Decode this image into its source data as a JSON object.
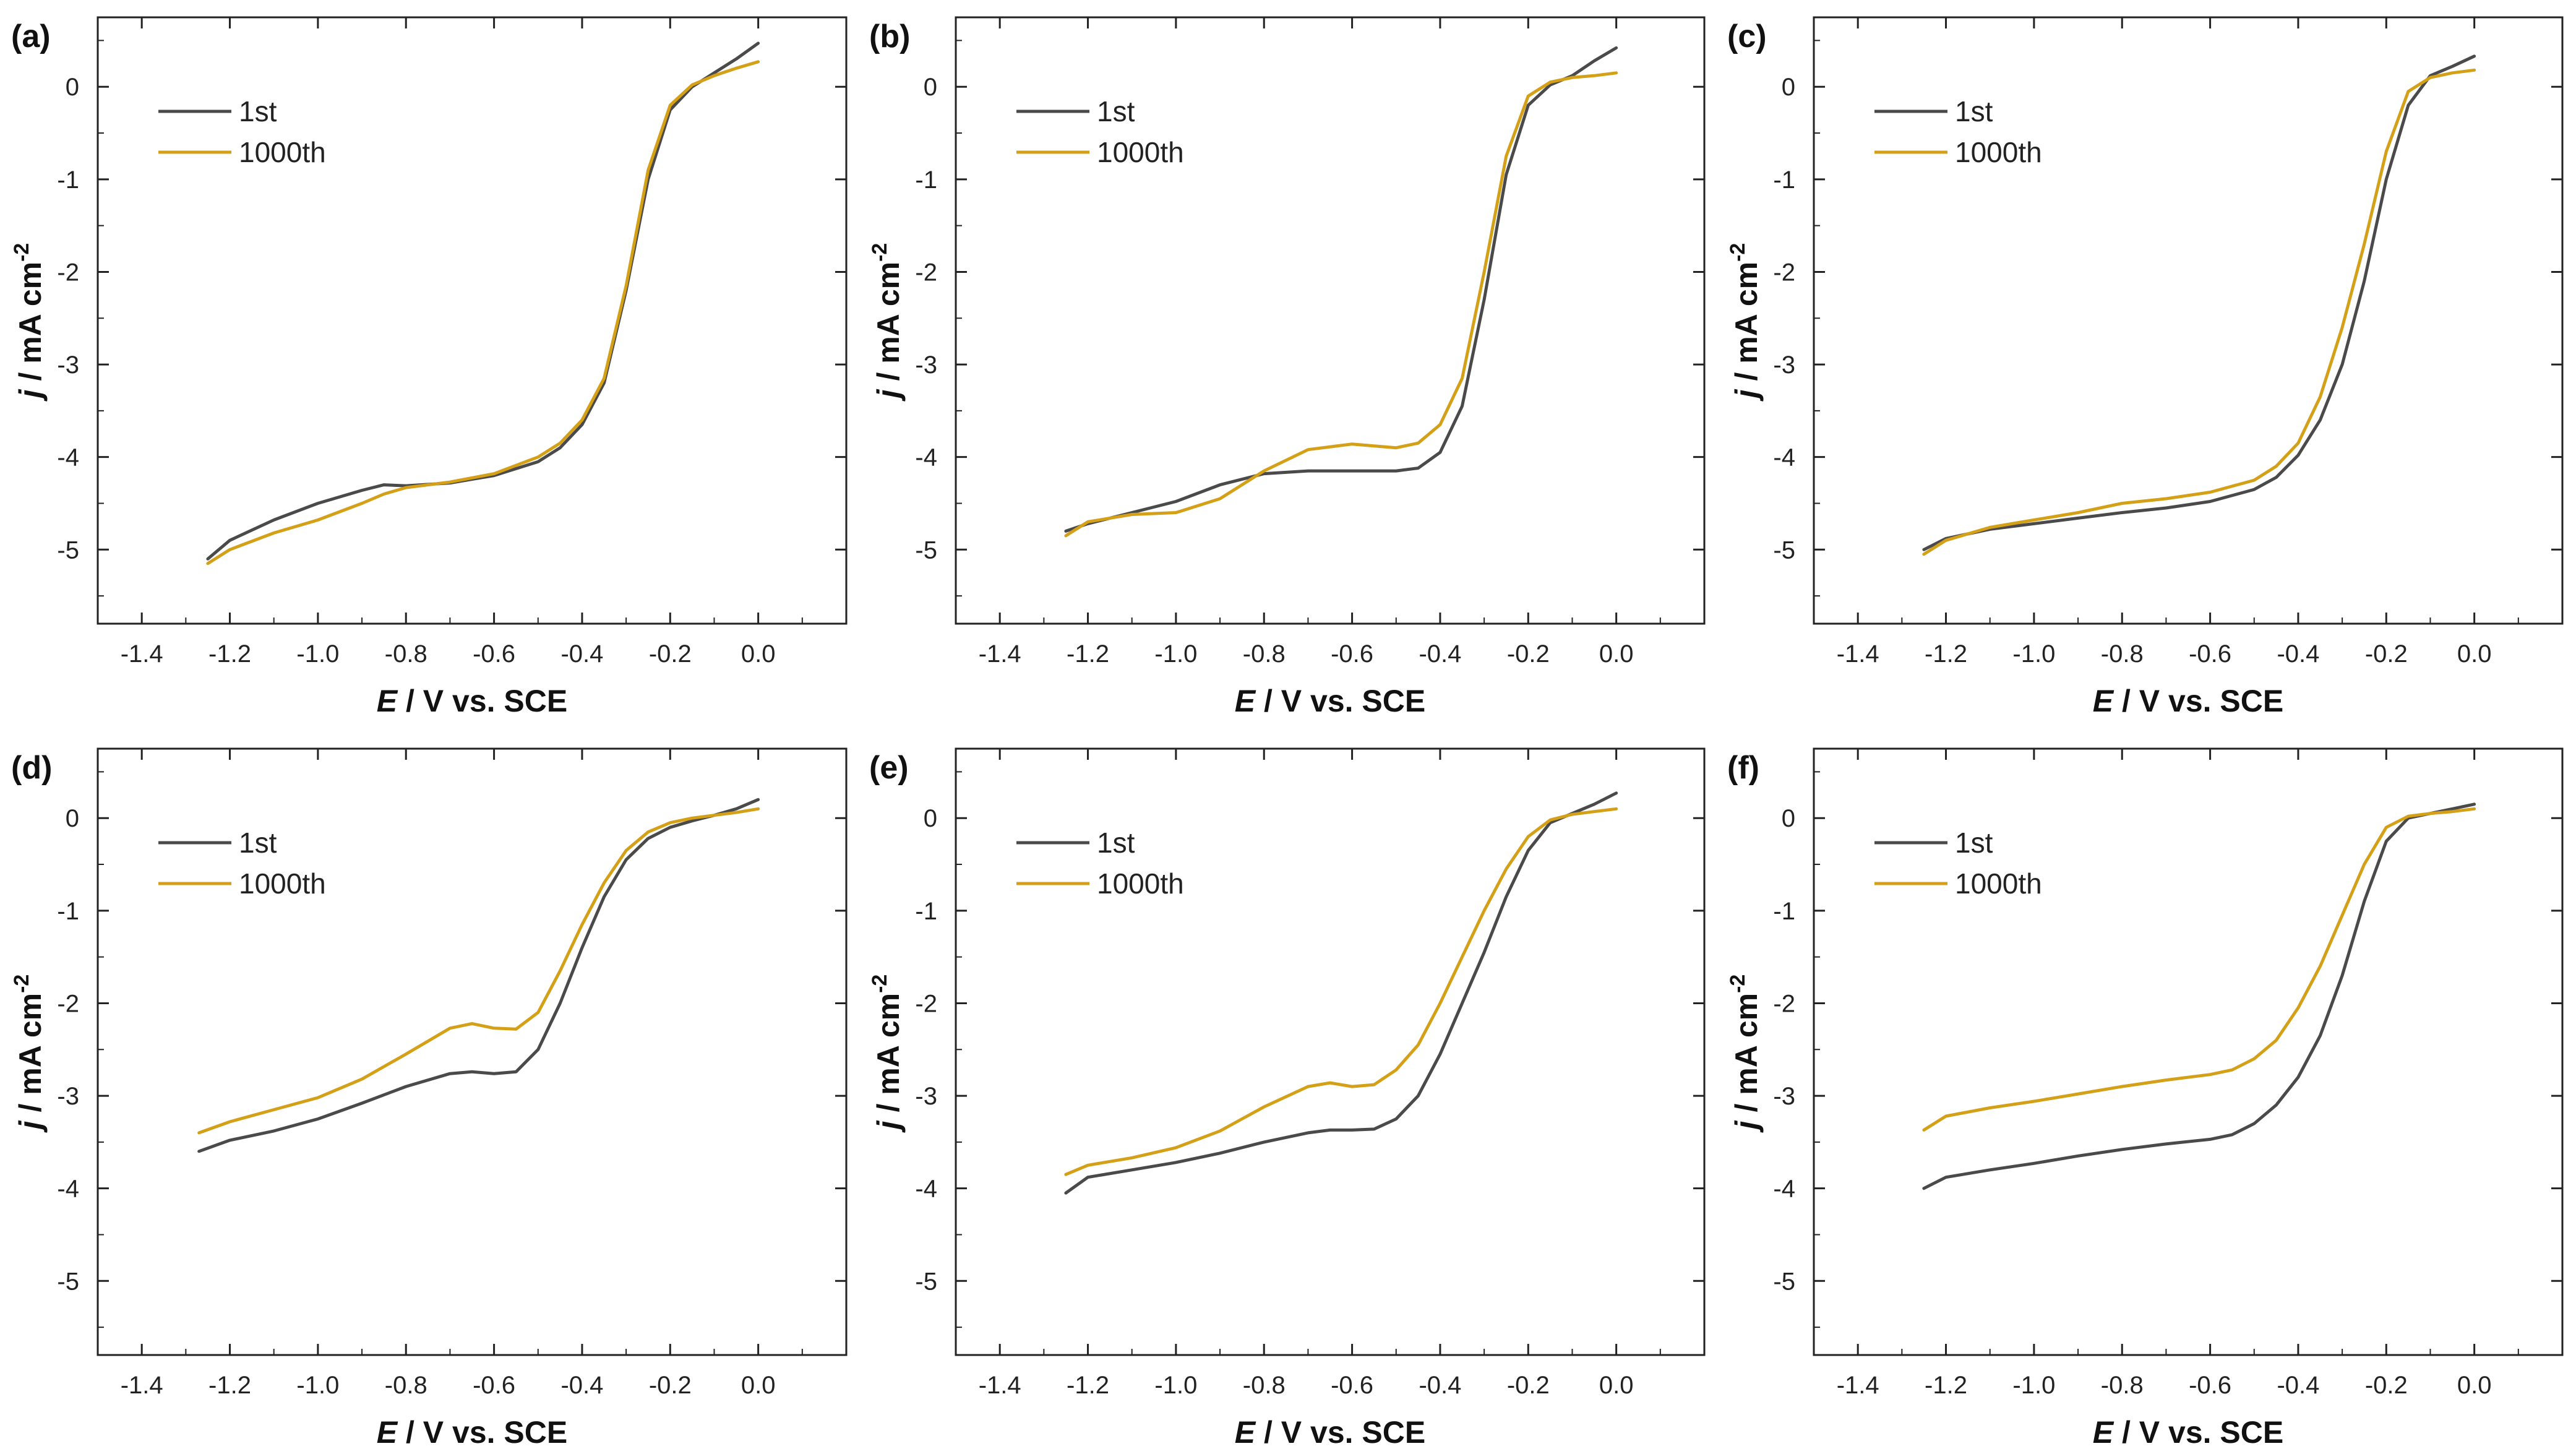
{
  "figure": {
    "colors": {
      "first": "#4a4a4a",
      "thousandth": "#d4a017",
      "axis": "#222222"
    }
  },
  "chart_data": [
    {
      "panel_label": "(a)",
      "type": "line",
      "xlabel_italic": "E",
      "xlabel_rest": " / V vs. SCE",
      "ylabel_italic": "j",
      "ylabel_rest": " / mA cm",
      "ylabel_sup": "-2",
      "xlim": [
        -1.5,
        0.2
      ],
      "ylim": [
        -5.8,
        0.75
      ],
      "xticks": [
        -1.4,
        -1.2,
        -1.0,
        -0.8,
        -0.6,
        -0.4,
        -0.2,
        0.0
      ],
      "xtick_labels": [
        "-1.4",
        "-1.2",
        "-1.0",
        "-0.8",
        "-0.6",
        "-0.4",
        "-0.2",
        "0.0"
      ],
      "yticks": [
        0,
        -1,
        -2,
        -3,
        -4,
        -5
      ],
      "ytick_labels": [
        "0",
        "-1",
        "-2",
        "-3",
        "-4",
        "-5"
      ],
      "legend": [
        "1st",
        "1000th"
      ],
      "series": [
        {
          "name": "1st",
          "x": [
            -1.25,
            -1.2,
            -1.1,
            -1.0,
            -0.9,
            -0.85,
            -0.8,
            -0.7,
            -0.6,
            -0.5,
            -0.45,
            -0.4,
            -0.35,
            -0.3,
            -0.25,
            -0.2,
            -0.15,
            -0.1,
            -0.05,
            0.0
          ],
          "y": [
            -5.1,
            -4.9,
            -4.68,
            -4.5,
            -4.36,
            -4.3,
            -4.31,
            -4.28,
            -4.2,
            -4.05,
            -3.9,
            -3.65,
            -3.2,
            -2.2,
            -1.0,
            -0.25,
            0.0,
            0.15,
            0.3,
            0.47
          ]
        },
        {
          "name": "1000th",
          "x": [
            -1.25,
            -1.2,
            -1.1,
            -1.0,
            -0.9,
            -0.85,
            -0.8,
            -0.7,
            -0.6,
            -0.5,
            -0.45,
            -0.4,
            -0.35,
            -0.3,
            -0.25,
            -0.2,
            -0.15,
            -0.1,
            -0.05,
            0.0
          ],
          "y": [
            -5.15,
            -5.0,
            -4.82,
            -4.68,
            -4.5,
            -4.4,
            -4.33,
            -4.27,
            -4.18,
            -4.0,
            -3.85,
            -3.6,
            -3.15,
            -2.15,
            -0.9,
            -0.2,
            0.02,
            0.12,
            0.2,
            0.27
          ]
        }
      ]
    },
    {
      "panel_label": "(b)",
      "type": "line",
      "xlabel_italic": "E",
      "xlabel_rest": " / V vs. SCE",
      "ylabel_italic": "j",
      "ylabel_rest": " / mA cm",
      "ylabel_sup": "-2",
      "xlim": [
        -1.5,
        0.2
      ],
      "ylim": [
        -5.8,
        0.75
      ],
      "xticks": [
        -1.4,
        -1.2,
        -1.0,
        -0.8,
        -0.6,
        -0.4,
        -0.2,
        0.0
      ],
      "xtick_labels": [
        "-1.4",
        "-1.2",
        "-1.0",
        "-0.8",
        "-0.6",
        "-0.4",
        "-0.2",
        "0.0"
      ],
      "yticks": [
        0,
        -1,
        -2,
        -3,
        -4,
        -5
      ],
      "ytick_labels": [
        "0",
        "-1",
        "-2",
        "-3",
        "-4",
        "-5"
      ],
      "legend": [
        "1st",
        "1000th"
      ],
      "series": [
        {
          "name": "1st",
          "x": [
            -1.25,
            -1.2,
            -1.1,
            -1.0,
            -0.9,
            -0.8,
            -0.7,
            -0.6,
            -0.5,
            -0.45,
            -0.4,
            -0.35,
            -0.3,
            -0.25,
            -0.2,
            -0.15,
            -0.1,
            -0.05,
            0.0
          ],
          "y": [
            -4.8,
            -4.72,
            -4.6,
            -4.48,
            -4.3,
            -4.18,
            -4.15,
            -4.15,
            -4.15,
            -4.12,
            -3.95,
            -3.45,
            -2.3,
            -0.95,
            -0.2,
            0.02,
            0.12,
            0.28,
            0.42
          ]
        },
        {
          "name": "1000th",
          "x": [
            -1.25,
            -1.2,
            -1.1,
            -1.0,
            -0.9,
            -0.8,
            -0.7,
            -0.6,
            -0.5,
            -0.45,
            -0.4,
            -0.35,
            -0.3,
            -0.25,
            -0.2,
            -0.15,
            -0.1,
            -0.05,
            0.0
          ],
          "y": [
            -4.85,
            -4.7,
            -4.62,
            -4.6,
            -4.45,
            -4.15,
            -3.92,
            -3.86,
            -3.9,
            -3.85,
            -3.65,
            -3.15,
            -2.0,
            -0.75,
            -0.1,
            0.05,
            0.1,
            0.12,
            0.15
          ]
        }
      ]
    },
    {
      "panel_label": "(c)",
      "type": "line",
      "xlabel_italic": "E",
      "xlabel_rest": " / V vs. SCE",
      "ylabel_italic": "j",
      "ylabel_rest": " / mA cm",
      "ylabel_sup": "-2",
      "xlim": [
        -1.5,
        0.2
      ],
      "ylim": [
        -5.8,
        0.75
      ],
      "xticks": [
        -1.4,
        -1.2,
        -1.0,
        -0.8,
        -0.6,
        -0.4,
        -0.2,
        0.0
      ],
      "xtick_labels": [
        "-1.4",
        "-1.2",
        "-1.0",
        "-0.8",
        "-0.6",
        "-0.4",
        "-0.2",
        "0.0"
      ],
      "yticks": [
        0,
        -1,
        -2,
        -3,
        -4,
        -5
      ],
      "ytick_labels": [
        "0",
        "-1",
        "-2",
        "-3",
        "-4",
        "-5"
      ],
      "legend": [
        "1st",
        "1000th"
      ],
      "series": [
        {
          "name": "1st",
          "x": [
            -1.25,
            -1.2,
            -1.1,
            -1.0,
            -0.9,
            -0.8,
            -0.7,
            -0.6,
            -0.5,
            -0.45,
            -0.4,
            -0.35,
            -0.3,
            -0.25,
            -0.2,
            -0.15,
            -0.1,
            -0.05,
            0.0
          ],
          "y": [
            -5.0,
            -4.88,
            -4.78,
            -4.72,
            -4.66,
            -4.6,
            -4.55,
            -4.48,
            -4.35,
            -4.22,
            -3.98,
            -3.6,
            -3.0,
            -2.1,
            -1.0,
            -0.2,
            0.12,
            0.22,
            0.33
          ]
        },
        {
          "name": "1000th",
          "x": [
            -1.25,
            -1.2,
            -1.1,
            -1.0,
            -0.9,
            -0.8,
            -0.7,
            -0.6,
            -0.5,
            -0.45,
            -0.4,
            -0.35,
            -0.3,
            -0.25,
            -0.2,
            -0.15,
            -0.1,
            -0.05,
            0.0
          ],
          "y": [
            -5.05,
            -4.9,
            -4.76,
            -4.68,
            -4.6,
            -4.5,
            -4.45,
            -4.38,
            -4.25,
            -4.1,
            -3.85,
            -3.35,
            -2.6,
            -1.7,
            -0.7,
            -0.05,
            0.1,
            0.15,
            0.18
          ]
        }
      ]
    },
    {
      "panel_label": "(d)",
      "type": "line",
      "xlabel_italic": "E",
      "xlabel_rest": " / V vs. SCE",
      "ylabel_italic": "j",
      "ylabel_rest": " / mA cm",
      "ylabel_sup": "-2",
      "xlim": [
        -1.5,
        0.2
      ],
      "ylim": [
        -5.8,
        0.75
      ],
      "xticks": [
        -1.4,
        -1.2,
        -1.0,
        -0.8,
        -0.6,
        -0.4,
        -0.2,
        0.0
      ],
      "xtick_labels": [
        "-1.4",
        "-1.2",
        "-1.0",
        "-0.8",
        "-0.6",
        "-0.4",
        "-0.2",
        "0.0"
      ],
      "yticks": [
        0,
        -1,
        -2,
        -3,
        -4,
        -5
      ],
      "ytick_labels": [
        "0",
        "-1",
        "-2",
        "-3",
        "-4",
        "-5"
      ],
      "legend": [
        "1st",
        "1000th"
      ],
      "series": [
        {
          "name": "1st",
          "x": [
            -1.27,
            -1.2,
            -1.1,
            -1.0,
            -0.9,
            -0.8,
            -0.7,
            -0.65,
            -0.6,
            -0.55,
            -0.5,
            -0.45,
            -0.4,
            -0.35,
            -0.3,
            -0.25,
            -0.2,
            -0.15,
            -0.1,
            -0.05,
            0.0
          ],
          "y": [
            -3.6,
            -3.48,
            -3.38,
            -3.25,
            -3.08,
            -2.9,
            -2.76,
            -2.74,
            -2.76,
            -2.74,
            -2.5,
            -2.0,
            -1.4,
            -0.85,
            -0.45,
            -0.22,
            -0.1,
            -0.03,
            0.03,
            0.1,
            0.2
          ]
        },
        {
          "name": "1000th",
          "x": [
            -1.27,
            -1.2,
            -1.1,
            -1.0,
            -0.9,
            -0.8,
            -0.7,
            -0.65,
            -0.6,
            -0.55,
            -0.5,
            -0.45,
            -0.4,
            -0.35,
            -0.3,
            -0.25,
            -0.2,
            -0.15,
            -0.1,
            -0.05,
            0.0
          ],
          "y": [
            -3.4,
            -3.28,
            -3.15,
            -3.02,
            -2.82,
            -2.55,
            -2.27,
            -2.22,
            -2.27,
            -2.28,
            -2.1,
            -1.65,
            -1.15,
            -0.7,
            -0.35,
            -0.15,
            -0.05,
            0.0,
            0.03,
            0.06,
            0.1
          ]
        }
      ]
    },
    {
      "panel_label": "(e)",
      "type": "line",
      "xlabel_italic": "E",
      "xlabel_rest": " / V vs. SCE",
      "ylabel_italic": "j",
      "ylabel_rest": " / mA cm",
      "ylabel_sup": "-2",
      "xlim": [
        -1.5,
        0.2
      ],
      "ylim": [
        -5.8,
        0.75
      ],
      "xticks": [
        -1.4,
        -1.2,
        -1.0,
        -0.8,
        -0.6,
        -0.4,
        -0.2,
        0.0
      ],
      "xtick_labels": [
        "-1.4",
        "-1.2",
        "-1.0",
        "-0.8",
        "-0.6",
        "-0.4",
        "-0.2",
        "0.0"
      ],
      "yticks": [
        0,
        -1,
        -2,
        -3,
        -4,
        -5
      ],
      "ytick_labels": [
        "0",
        "-1",
        "-2",
        "-3",
        "-4",
        "-5"
      ],
      "legend": [
        "1st",
        "1000th"
      ],
      "series": [
        {
          "name": "1st",
          "x": [
            -1.25,
            -1.2,
            -1.1,
            -1.0,
            -0.9,
            -0.8,
            -0.7,
            -0.65,
            -0.6,
            -0.55,
            -0.5,
            -0.45,
            -0.4,
            -0.35,
            -0.3,
            -0.25,
            -0.2,
            -0.15,
            -0.1,
            -0.05,
            0.0
          ],
          "y": [
            -4.05,
            -3.88,
            -3.8,
            -3.72,
            -3.62,
            -3.5,
            -3.4,
            -3.37,
            -3.37,
            -3.36,
            -3.25,
            -3.0,
            -2.55,
            -2.0,
            -1.45,
            -0.85,
            -0.35,
            -0.05,
            0.05,
            0.15,
            0.27
          ]
        },
        {
          "name": "1000th",
          "x": [
            -1.25,
            -1.2,
            -1.1,
            -1.0,
            -0.9,
            -0.8,
            -0.7,
            -0.65,
            -0.6,
            -0.55,
            -0.5,
            -0.45,
            -0.4,
            -0.35,
            -0.3,
            -0.25,
            -0.2,
            -0.15,
            -0.1,
            -0.05,
            0.0
          ],
          "y": [
            -3.85,
            -3.75,
            -3.67,
            -3.56,
            -3.38,
            -3.12,
            -2.9,
            -2.86,
            -2.9,
            -2.88,
            -2.72,
            -2.45,
            -2.0,
            -1.5,
            -1.0,
            -0.55,
            -0.2,
            -0.02,
            0.04,
            0.07,
            0.1
          ]
        }
      ]
    },
    {
      "panel_label": "(f)",
      "type": "line",
      "xlabel_italic": "E",
      "xlabel_rest": " / V vs. SCE",
      "ylabel_italic": "j",
      "ylabel_rest": " / mA cm",
      "ylabel_sup": "-2",
      "xlim": [
        -1.5,
        0.2
      ],
      "ylim": [
        -5.8,
        0.75
      ],
      "xticks": [
        -1.4,
        -1.2,
        -1.0,
        -0.8,
        -0.6,
        -0.4,
        -0.2,
        0.0
      ],
      "xtick_labels": [
        "-1.4",
        "-1.2",
        "-1.0",
        "-0.8",
        "-0.6",
        "-0.4",
        "-0.2",
        "0.0"
      ],
      "yticks": [
        0,
        -1,
        -2,
        -3,
        -4,
        -5
      ],
      "ytick_labels": [
        "0",
        "-1",
        "-2",
        "-3",
        "-4",
        "-5"
      ],
      "legend": [
        "1st",
        "1000th"
      ],
      "series": [
        {
          "name": "1st",
          "x": [
            -1.25,
            -1.2,
            -1.1,
            -1.0,
            -0.9,
            -0.8,
            -0.7,
            -0.6,
            -0.55,
            -0.5,
            -0.45,
            -0.4,
            -0.35,
            -0.3,
            -0.25,
            -0.2,
            -0.15,
            -0.1,
            -0.05,
            0.0
          ],
          "y": [
            -4.0,
            -3.88,
            -3.8,
            -3.73,
            -3.65,
            -3.58,
            -3.52,
            -3.47,
            -3.42,
            -3.3,
            -3.1,
            -2.8,
            -2.35,
            -1.7,
            -0.9,
            -0.25,
            0.0,
            0.05,
            0.1,
            0.15
          ]
        },
        {
          "name": "1000th",
          "x": [
            -1.25,
            -1.2,
            -1.1,
            -1.0,
            -0.9,
            -0.8,
            -0.7,
            -0.6,
            -0.55,
            -0.5,
            -0.45,
            -0.4,
            -0.35,
            -0.3,
            -0.25,
            -0.2,
            -0.15,
            -0.1,
            -0.05,
            0.0
          ],
          "y": [
            -3.37,
            -3.22,
            -3.13,
            -3.06,
            -2.98,
            -2.9,
            -2.83,
            -2.77,
            -2.72,
            -2.6,
            -2.4,
            -2.05,
            -1.6,
            -1.05,
            -0.5,
            -0.1,
            0.02,
            0.05,
            0.07,
            0.1
          ]
        }
      ]
    }
  ]
}
